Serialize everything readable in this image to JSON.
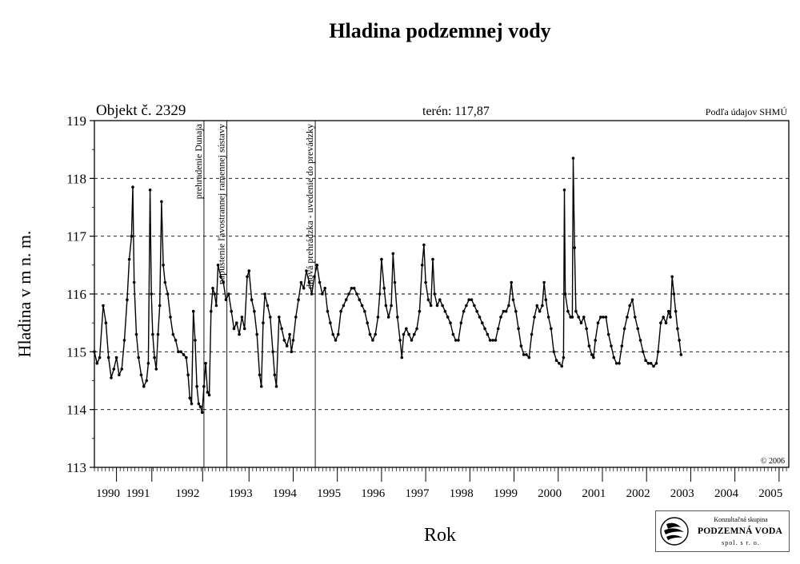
{
  "chart_data": {
    "type": "line",
    "title": "Hladina podzemnej vody",
    "ylabel": "Hladina v m n. m.",
    "xlabel": "Rok",
    "object_label": "Objekt č. 2329",
    "terrain_label": "terén: 117,87",
    "source_label": "Podľa údajov SHMÚ",
    "copyright": "© 2006",
    "ylim": [
      113,
      119
    ],
    "xlim": [
      1990.0,
      2005.72
    ],
    "yticks": [
      113,
      114,
      115,
      116,
      117,
      118,
      119
    ],
    "grid": "horizontal dashed",
    "x_tick_labels": [
      {
        "label": "1990",
        "x": 1990.0
      },
      {
        "label": "1991",
        "x": 1990.68
      },
      {
        "label": "1992",
        "x": 1991.8
      },
      {
        "label": "1993",
        "x": 1993.0
      },
      {
        "label": "1994",
        "x": 1994.0
      },
      {
        "label": "1995",
        "x": 1995.0
      },
      {
        "label": "1996",
        "x": 1996.0
      },
      {
        "label": "1997",
        "x": 1997.0
      },
      {
        "label": "1998",
        "x": 1998.0
      },
      {
        "label": "1999",
        "x": 1999.0
      },
      {
        "label": "2000",
        "x": 2000.0
      },
      {
        "label": "2001",
        "x": 2001.0
      },
      {
        "label": "2002",
        "x": 2002.0
      },
      {
        "label": "2003",
        "x": 2003.0
      },
      {
        "label": "2004",
        "x": 2004.0
      },
      {
        "label": "2005",
        "x": 2005.0
      }
    ],
    "year_boundaries": [
      1990.5,
      1991.3,
      1992.45,
      1993.5,
      1994.5,
      1995.5,
      1996.5,
      1997.5,
      1998.5,
      1999.5,
      2000.5,
      2001.5,
      2002.5,
      2003.5,
      2004.5,
      2005.5
    ],
    "events": [
      {
        "label": "prehradenie Dunaja",
        "x": 1992.48
      },
      {
        "label": "napustenie ľavostrannej ramennej sústavy",
        "x": 1993.0
      },
      {
        "label": "dnová prehrádzka - uvedenie do prevádzky",
        "x": 1995.0
      }
    ],
    "series": [
      {
        "values": [
          [
            1990.0,
            115.0
          ],
          [
            1990.06,
            114.8
          ],
          [
            1990.12,
            114.9
          ],
          [
            1990.2,
            115.8
          ],
          [
            1990.26,
            115.5
          ],
          [
            1990.32,
            114.9
          ],
          [
            1990.38,
            114.55
          ],
          [
            1990.44,
            114.7
          ],
          [
            1990.5,
            114.9
          ],
          [
            1990.56,
            114.6
          ],
          [
            1990.62,
            114.7
          ],
          [
            1990.68,
            115.2
          ],
          [
            1990.74,
            115.9
          ],
          [
            1990.79,
            116.6
          ],
          [
            1990.84,
            117.0
          ],
          [
            1990.87,
            117.85
          ],
          [
            1990.9,
            116.2
          ],
          [
            1990.95,
            115.3
          ],
          [
            1991.0,
            114.9
          ],
          [
            1991.06,
            114.6
          ],
          [
            1991.12,
            114.4
          ],
          [
            1991.18,
            114.5
          ],
          [
            1991.22,
            114.8
          ],
          [
            1991.26,
            117.8
          ],
          [
            1991.29,
            116.0
          ],
          [
            1991.32,
            115.3
          ],
          [
            1991.36,
            114.9
          ],
          [
            1991.4,
            114.7
          ],
          [
            1991.44,
            115.3
          ],
          [
            1991.48,
            115.8
          ],
          [
            1991.52,
            117.6
          ],
          [
            1991.56,
            116.5
          ],
          [
            1991.6,
            116.2
          ],
          [
            1991.66,
            116.0
          ],
          [
            1991.72,
            115.6
          ],
          [
            1991.78,
            115.3
          ],
          [
            1991.84,
            115.2
          ],
          [
            1991.9,
            115.0
          ],
          [
            1991.96,
            115.0
          ],
          [
            1992.02,
            114.95
          ],
          [
            1992.08,
            114.9
          ],
          [
            1992.12,
            114.6
          ],
          [
            1992.16,
            114.2
          ],
          [
            1992.2,
            114.1
          ],
          [
            1992.24,
            115.7
          ],
          [
            1992.28,
            115.2
          ],
          [
            1992.32,
            114.4
          ],
          [
            1992.36,
            114.1
          ],
          [
            1992.4,
            114.05
          ],
          [
            1992.44,
            113.95
          ],
          [
            1992.48,
            114.4
          ],
          [
            1992.52,
            114.8
          ],
          [
            1992.56,
            114.3
          ],
          [
            1992.6,
            114.25
          ],
          [
            1992.64,
            115.7
          ],
          [
            1992.68,
            116.1
          ],
          [
            1992.72,
            116.0
          ],
          [
            1992.76,
            115.8
          ],
          [
            1992.8,
            116.5
          ],
          [
            1992.86,
            116.3
          ],
          [
            1992.92,
            116.2
          ],
          [
            1992.98,
            115.9
          ],
          [
            1993.04,
            116.0
          ],
          [
            1993.1,
            115.7
          ],
          [
            1993.16,
            115.4
          ],
          [
            1993.22,
            115.5
          ],
          [
            1993.28,
            115.3
          ],
          [
            1993.34,
            115.6
          ],
          [
            1993.4,
            115.4
          ],
          [
            1993.46,
            116.3
          ],
          [
            1993.5,
            116.4
          ],
          [
            1993.56,
            115.9
          ],
          [
            1993.62,
            115.7
          ],
          [
            1993.68,
            115.3
          ],
          [
            1993.74,
            114.6
          ],
          [
            1993.78,
            114.4
          ],
          [
            1993.82,
            115.5
          ],
          [
            1993.86,
            116.0
          ],
          [
            1993.92,
            115.8
          ],
          [
            1993.98,
            115.6
          ],
          [
            1994.04,
            115.0
          ],
          [
            1994.08,
            114.6
          ],
          [
            1994.12,
            114.4
          ],
          [
            1994.18,
            115.6
          ],
          [
            1994.24,
            115.4
          ],
          [
            1994.3,
            115.2
          ],
          [
            1994.36,
            115.1
          ],
          [
            1994.42,
            115.3
          ],
          [
            1994.46,
            115.0
          ],
          [
            1994.5,
            115.2
          ],
          [
            1994.56,
            115.6
          ],
          [
            1994.62,
            115.9
          ],
          [
            1994.68,
            116.2
          ],
          [
            1994.74,
            116.1
          ],
          [
            1994.8,
            116.4
          ],
          [
            1994.86,
            116.2
          ],
          [
            1994.92,
            116.0
          ],
          [
            1994.98,
            116.3
          ],
          [
            1995.04,
            116.5
          ],
          [
            1995.1,
            116.2
          ],
          [
            1995.16,
            116.0
          ],
          [
            1995.22,
            116.1
          ],
          [
            1995.28,
            115.7
          ],
          [
            1995.34,
            115.5
          ],
          [
            1995.4,
            115.3
          ],
          [
            1995.46,
            115.2
          ],
          [
            1995.52,
            115.3
          ],
          [
            1995.58,
            115.7
          ],
          [
            1995.64,
            115.8
          ],
          [
            1995.7,
            115.9
          ],
          [
            1995.76,
            116.0
          ],
          [
            1995.82,
            116.1
          ],
          [
            1995.88,
            116.1
          ],
          [
            1995.94,
            116.0
          ],
          [
            1996.0,
            115.9
          ],
          [
            1996.06,
            115.8
          ],
          [
            1996.12,
            115.7
          ],
          [
            1996.18,
            115.5
          ],
          [
            1996.24,
            115.3
          ],
          [
            1996.3,
            115.2
          ],
          [
            1996.36,
            115.3
          ],
          [
            1996.42,
            115.6
          ],
          [
            1996.46,
            116.0
          ],
          [
            1996.5,
            116.6
          ],
          [
            1996.56,
            116.1
          ],
          [
            1996.6,
            115.8
          ],
          [
            1996.66,
            115.6
          ],
          [
            1996.72,
            115.8
          ],
          [
            1996.76,
            116.7
          ],
          [
            1996.8,
            116.2
          ],
          [
            1996.86,
            115.6
          ],
          [
            1996.92,
            115.2
          ],
          [
            1996.96,
            114.9
          ],
          [
            1997.0,
            115.3
          ],
          [
            1997.06,
            115.4
          ],
          [
            1997.12,
            115.3
          ],
          [
            1997.18,
            115.2
          ],
          [
            1997.24,
            115.3
          ],
          [
            1997.3,
            115.4
          ],
          [
            1997.36,
            115.7
          ],
          [
            1997.42,
            116.5
          ],
          [
            1997.46,
            116.85
          ],
          [
            1997.5,
            116.2
          ],
          [
            1997.56,
            115.9
          ],
          [
            1997.62,
            115.8
          ],
          [
            1997.66,
            116.6
          ],
          [
            1997.7,
            116.0
          ],
          [
            1997.76,
            115.8
          ],
          [
            1997.82,
            115.9
          ],
          [
            1997.88,
            115.8
          ],
          [
            1997.94,
            115.7
          ],
          [
            1998.0,
            115.6
          ],
          [
            1998.06,
            115.5
          ],
          [
            1998.12,
            115.3
          ],
          [
            1998.18,
            115.2
          ],
          [
            1998.24,
            115.2
          ],
          [
            1998.3,
            115.5
          ],
          [
            1998.36,
            115.7
          ],
          [
            1998.42,
            115.8
          ],
          [
            1998.48,
            115.9
          ],
          [
            1998.54,
            115.9
          ],
          [
            1998.6,
            115.8
          ],
          [
            1998.66,
            115.7
          ],
          [
            1998.72,
            115.6
          ],
          [
            1998.78,
            115.5
          ],
          [
            1998.84,
            115.4
          ],
          [
            1998.9,
            115.3
          ],
          [
            1998.96,
            115.2
          ],
          [
            1999.02,
            115.2
          ],
          [
            1999.08,
            115.2
          ],
          [
            1999.14,
            115.4
          ],
          [
            1999.2,
            115.6
          ],
          [
            1999.26,
            115.7
          ],
          [
            1999.32,
            115.7
          ],
          [
            1999.38,
            115.8
          ],
          [
            1999.44,
            116.2
          ],
          [
            1999.48,
            115.9
          ],
          [
            1999.54,
            115.7
          ],
          [
            1999.6,
            115.4
          ],
          [
            1999.66,
            115.1
          ],
          [
            1999.72,
            114.95
          ],
          [
            1999.78,
            114.95
          ],
          [
            1999.84,
            114.9
          ],
          [
            1999.9,
            115.3
          ],
          [
            1999.96,
            115.6
          ],
          [
            2000.02,
            115.8
          ],
          [
            2000.08,
            115.7
          ],
          [
            2000.14,
            115.8
          ],
          [
            2000.18,
            116.2
          ],
          [
            2000.22,
            115.9
          ],
          [
            2000.28,
            115.6
          ],
          [
            2000.34,
            115.4
          ],
          [
            2000.4,
            115.0
          ],
          [
            2000.46,
            114.85
          ],
          [
            2000.52,
            114.8
          ],
          [
            2000.58,
            114.75
          ],
          [
            2000.62,
            114.9
          ],
          [
            2000.64,
            117.8
          ],
          [
            2000.66,
            116.0
          ],
          [
            2000.72,
            115.7
          ],
          [
            2000.78,
            115.6
          ],
          [
            2000.82,
            115.6
          ],
          [
            2000.84,
            118.35
          ],
          [
            2000.87,
            116.8
          ],
          [
            2000.9,
            115.7
          ],
          [
            2000.96,
            115.6
          ],
          [
            2001.02,
            115.5
          ],
          [
            2001.08,
            115.6
          ],
          [
            2001.14,
            115.4
          ],
          [
            2001.2,
            115.1
          ],
          [
            2001.26,
            114.95
          ],
          [
            2001.3,
            114.9
          ],
          [
            2001.34,
            115.2
          ],
          [
            2001.4,
            115.5
          ],
          [
            2001.46,
            115.6
          ],
          [
            2001.52,
            115.6
          ],
          [
            2001.58,
            115.6
          ],
          [
            2001.64,
            115.3
          ],
          [
            2001.7,
            115.1
          ],
          [
            2001.76,
            114.9
          ],
          [
            2001.82,
            114.8
          ],
          [
            2001.88,
            114.8
          ],
          [
            2001.94,
            115.1
          ],
          [
            2002.0,
            115.4
          ],
          [
            2002.06,
            115.6
          ],
          [
            2002.12,
            115.8
          ],
          [
            2002.18,
            115.9
          ],
          [
            2002.24,
            115.6
          ],
          [
            2002.3,
            115.4
          ],
          [
            2002.36,
            115.2
          ],
          [
            2002.42,
            115.0
          ],
          [
            2002.48,
            114.85
          ],
          [
            2002.54,
            114.8
          ],
          [
            2002.6,
            114.8
          ],
          [
            2002.66,
            114.75
          ],
          [
            2002.72,
            114.8
          ],
          [
            2002.76,
            115.0
          ],
          [
            2002.82,
            115.5
          ],
          [
            2002.88,
            115.6
          ],
          [
            2002.94,
            115.5
          ],
          [
            2003.0,
            115.7
          ],
          [
            2003.04,
            115.6
          ],
          [
            2003.08,
            116.3
          ],
          [
            2003.12,
            116.0
          ],
          [
            2003.16,
            115.7
          ],
          [
            2003.2,
            115.4
          ],
          [
            2003.24,
            115.2
          ],
          [
            2003.28,
            114.95
          ]
        ]
      }
    ]
  },
  "logo": {
    "line1": "Konzultačná skupina",
    "line2": "PODZEMNÁ VODA",
    "line3": "spol. s r. o."
  }
}
